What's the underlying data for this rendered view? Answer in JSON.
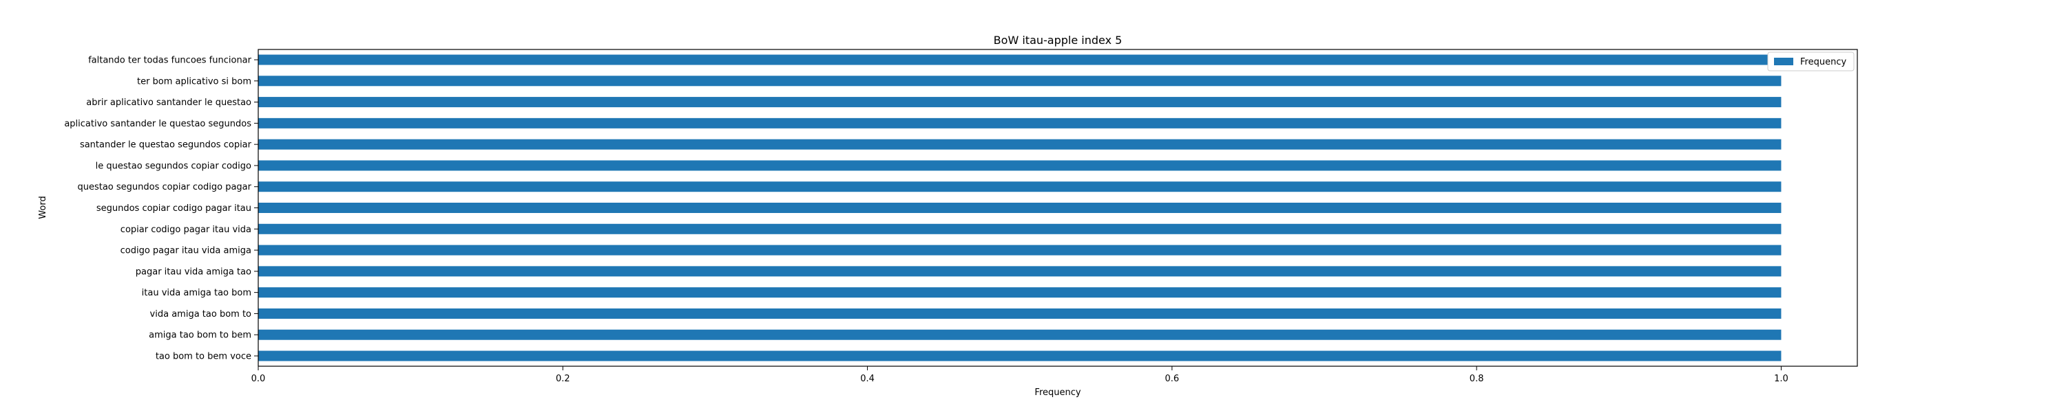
{
  "chart_data": {
    "type": "bar",
    "orientation": "horizontal",
    "title": "BoW itau-apple index 5",
    "xlabel": "Frequency",
    "ylabel": "Word",
    "xlim": [
      0,
      1.05
    ],
    "xticks": [
      "0.0",
      "0.2",
      "0.4",
      "0.6",
      "0.8",
      "1.0"
    ],
    "grid": false,
    "legend_position": "top-right",
    "series": [
      {
        "name": "Frequency",
        "color": "#1f77b4",
        "values": [
          1,
          1,
          1,
          1,
          1,
          1,
          1,
          1,
          1,
          1,
          1,
          1,
          1,
          1,
          1
        ]
      }
    ],
    "categories": [
      "faltando ter todas funcoes funcionar",
      "ter bom aplicativo si bom",
      "abrir aplicativo santander le questao",
      "aplicativo santander le questao segundos",
      "santander le questao segundos copiar",
      "le questao segundos copiar codigo",
      "questao segundos copiar codigo pagar",
      "segundos copiar codigo pagar itau",
      "copiar codigo pagar itau vida",
      "codigo pagar itau vida amiga",
      "pagar itau vida amiga tao",
      "itau vida amiga tao bom",
      "vida amiga tao bom to",
      "amiga tao bom to bem",
      "tao bom to bem voce"
    ]
  }
}
